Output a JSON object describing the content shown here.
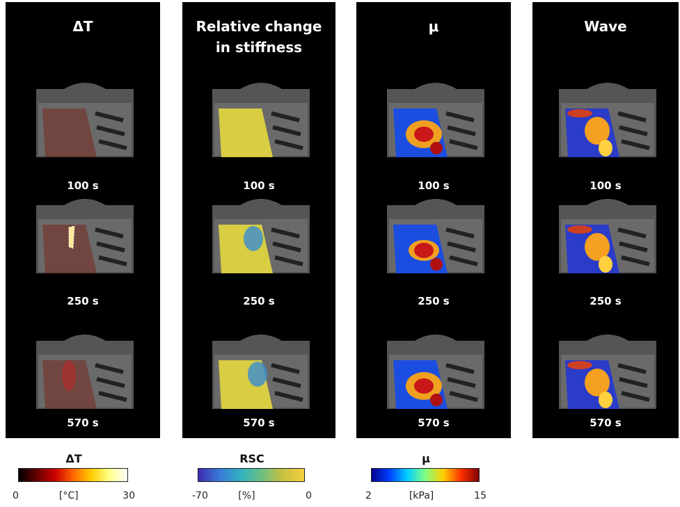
{
  "panels": [
    {
      "title": "ΔT",
      "frames": [
        "100 s",
        "250 s",
        "570 s"
      ]
    },
    {
      "title": "Relative change in stiffness",
      "frames": [
        "100 s",
        "250 s",
        "570 s"
      ]
    },
    {
      "title": "μ",
      "frames": [
        "100 s",
        "250 s",
        "570 s"
      ]
    },
    {
      "title": "Wave",
      "frames": [
        "100 s",
        "250 s",
        "570 s"
      ]
    }
  ],
  "colorbars": [
    {
      "title": "ΔT",
      "min": 0,
      "unit": "[°C]",
      "max": 30
    },
    {
      "title": "RSC",
      "min": -70,
      "unit": "[%]",
      "max": 0
    },
    {
      "title": "μ",
      "min": 2,
      "unit": "[kPa]",
      "max": 15
    }
  ]
}
